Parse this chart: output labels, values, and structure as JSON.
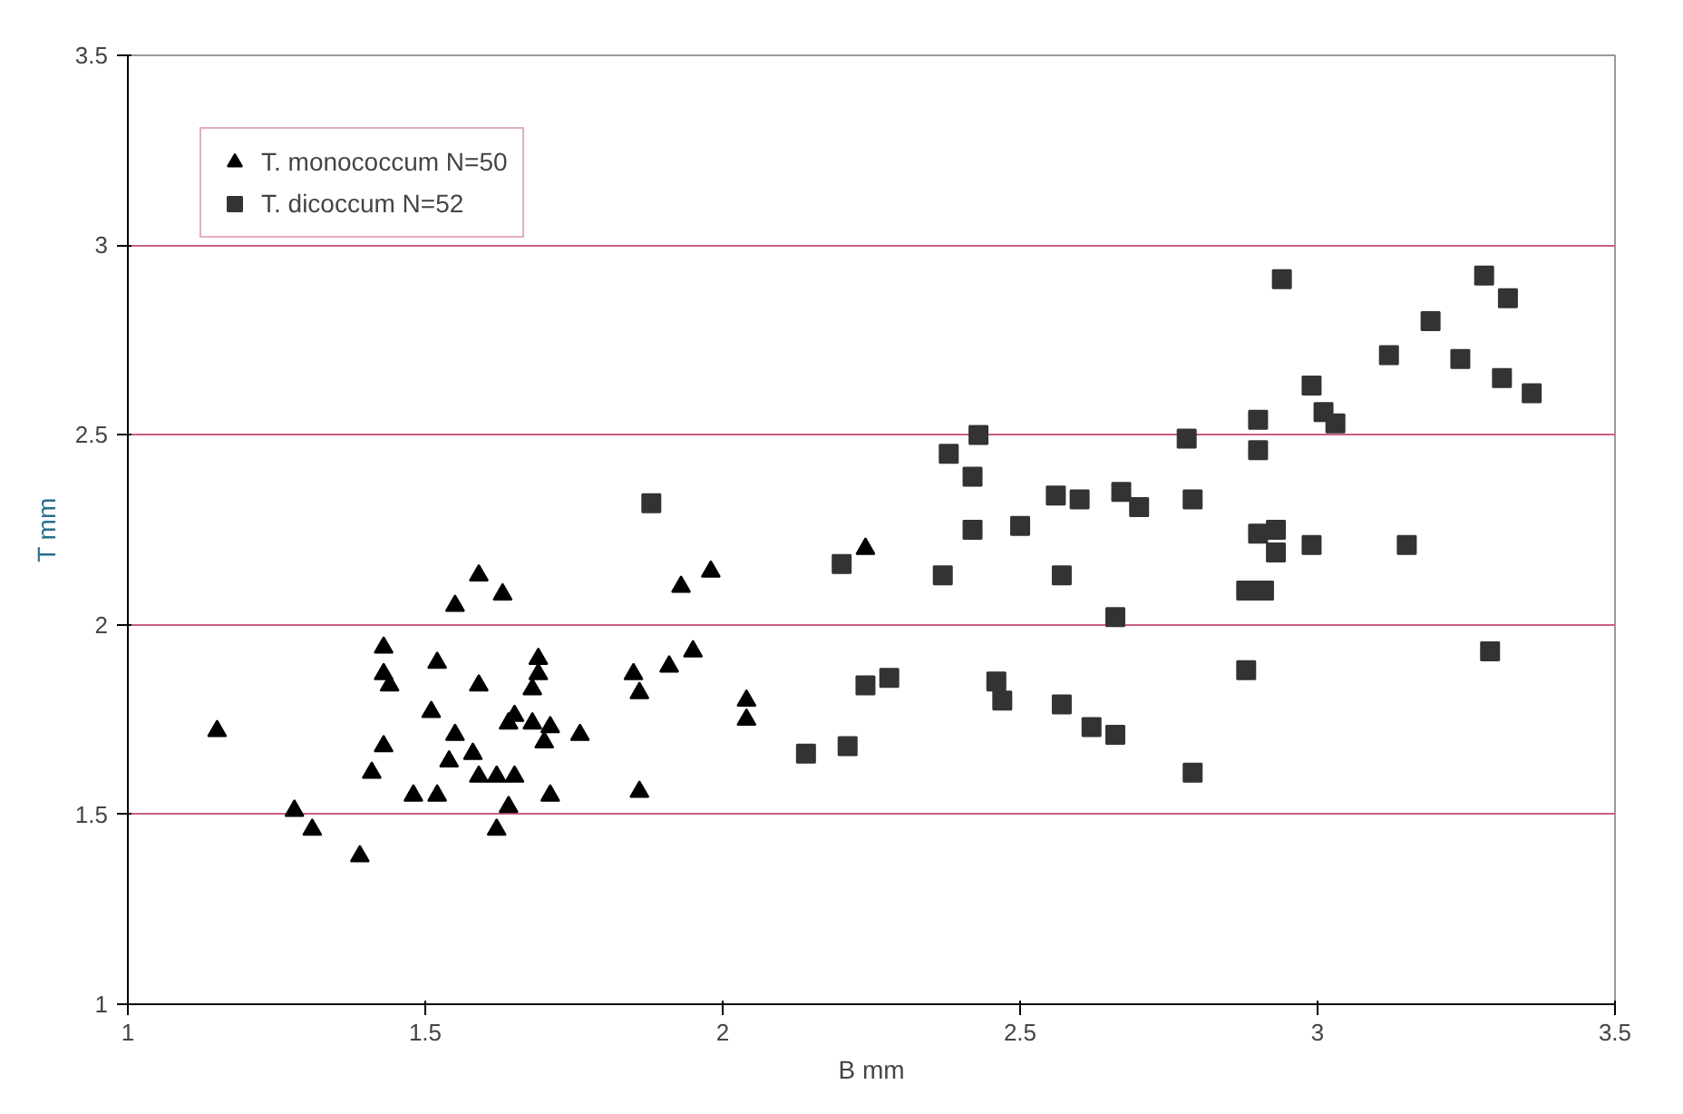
{
  "chart_data": {
    "type": "scatter",
    "xlabel": "B mm",
    "ylabel": "T mm",
    "xlim": [
      1,
      3.5
    ],
    "ylim": [
      1,
      3.5
    ],
    "xticks": [
      1,
      1.5,
      2,
      2.5,
      3,
      3.5
    ],
    "yticks": [
      1,
      1.5,
      2,
      2.5,
      3,
      3.5
    ],
    "grid": "y",
    "legend": "top left",
    "series": [
      {
        "name": "T. monococcum N=50",
        "color": "#000000",
        "marker": "triangle",
        "x": [
          1.15,
          1.28,
          1.31,
          1.39,
          1.59,
          1.55,
          1.63,
          1.43,
          1.43,
          1.44,
          1.52,
          1.59,
          1.51,
          1.69,
          1.69,
          1.68,
          1.65,
          1.64,
          1.68,
          1.71,
          1.7,
          1.76,
          1.55,
          1.58,
          1.54,
          1.43,
          1.41,
          1.59,
          1.62,
          1.65,
          1.48,
          1.52,
          1.64,
          1.71,
          1.62,
          1.85,
          1.86,
          1.86,
          1.93,
          1.98,
          1.91,
          1.95,
          2.04,
          2.04,
          2.24
        ],
        "values": [
          1.72,
          1.51,
          1.46,
          1.39,
          2.13,
          2.05,
          2.08,
          1.94,
          1.87,
          1.84,
          1.9,
          1.84,
          1.77,
          1.91,
          1.87,
          1.83,
          1.76,
          1.74,
          1.74,
          1.73,
          1.69,
          1.71,
          1.71,
          1.66,
          1.64,
          1.68,
          1.61,
          1.6,
          1.6,
          1.6,
          1.55,
          1.55,
          1.52,
          1.55,
          1.46,
          1.87,
          1.82,
          1.56,
          2.1,
          2.14,
          1.89,
          1.93,
          1.8,
          1.75,
          2.2
        ]
      },
      {
        "name": "T. dicoccum N=52",
        "color": "#333333",
        "marker": "square",
        "x": [
          1.88,
          2.2,
          2.37,
          2.42,
          2.42,
          2.5,
          2.56,
          2.6,
          2.67,
          2.57,
          2.66,
          2.24,
          2.28,
          2.14,
          2.21,
          2.46,
          2.47,
          2.57,
          2.62,
          2.66,
          2.94,
          3.28,
          3.32,
          3.19,
          3.12,
          3.24,
          3.31,
          3.36,
          2.99,
          3.01,
          3.03,
          2.9,
          2.9,
          2.78,
          2.7,
          2.79,
          2.9,
          2.93,
          2.93,
          2.99,
          3.15,
          2.88,
          2.91,
          3.29,
          2.88,
          2.79,
          2.38,
          2.43
        ],
        "values": [
          2.32,
          2.16,
          2.13,
          2.39,
          2.25,
          2.26,
          2.34,
          2.33,
          2.35,
          2.13,
          2.02,
          1.84,
          1.86,
          1.66,
          1.68,
          1.85,
          1.8,
          1.79,
          1.73,
          1.71,
          2.91,
          2.92,
          2.86,
          2.8,
          2.71,
          2.7,
          2.65,
          2.61,
          2.63,
          2.56,
          2.53,
          2.54,
          2.46,
          2.49,
          2.31,
          2.33,
          2.24,
          2.25,
          2.19,
          2.21,
          2.21,
          2.09,
          2.09,
          1.93,
          1.88,
          1.61,
          2.45,
          2.5
        ]
      }
    ]
  }
}
